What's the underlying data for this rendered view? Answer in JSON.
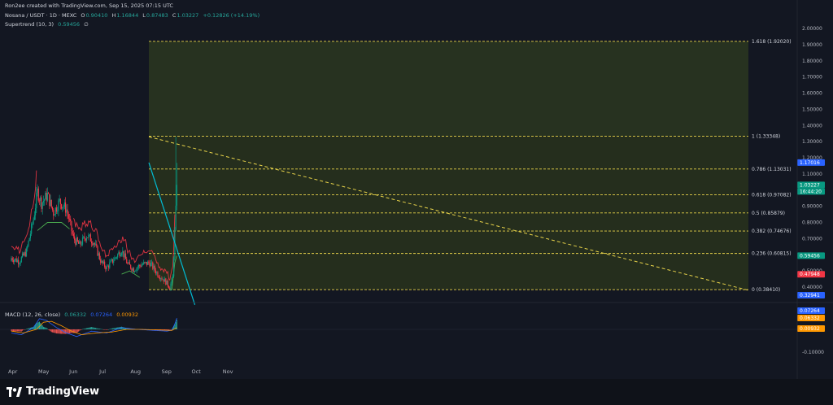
{
  "attribution": "Ron2ee created with TradingView.com, Sep 15, 2025 07:15 UTC",
  "legend": {
    "symbol": "Nosana / USDT · 1D · MEXC",
    "open_label": "O",
    "open": "0.90410",
    "high_label": "H",
    "high": "1.16844",
    "low_label": "L",
    "low": "0.87483",
    "close_label": "C",
    "close": "1.03227",
    "change": "+0.12826 (+14.19%)",
    "supertrend_label": "Supertrend (10, 3)",
    "supertrend_value": "0.59456",
    "supertrend_extra": "∅"
  },
  "macd_legend": {
    "label": "MACD (12, 26, close)",
    "v1": "0.06332",
    "v2": "0.07264",
    "v3": "0.00932"
  },
  "brand": "TradingView",
  "chart_data": [
    {
      "type": "candlestick",
      "title": "Nosana / USDT · 1D · MEXC",
      "x_tick_labels": [
        "Apr",
        "May",
        "Jun",
        "Jul",
        "Aug",
        "Sep",
        "Oct",
        "Nov"
      ],
      "y_tick_labels": [
        "2.00000",
        "1.90000",
        "1.80000",
        "1.70000",
        "1.60000",
        "1.50000",
        "1.40000",
        "1.30000",
        "1.20000",
        "1.10000",
        "1.00000",
        "0.90000",
        "0.80000",
        "0.70000",
        "0.60000",
        "0.50000",
        "0.40000"
      ],
      "ylim": [
        0.3,
        2.05
      ],
      "ohlc_approx": [
        {
          "date": "Apr 1",
          "close": 0.58
        },
        {
          "date": "Apr 15",
          "close": 0.62
        },
        {
          "date": "Apr 25",
          "close": 0.98
        },
        {
          "date": "May 1",
          "close": 0.9
        },
        {
          "date": "May 10",
          "close": 0.95
        },
        {
          "date": "May 20",
          "close": 0.8
        },
        {
          "date": "Jun 1",
          "close": 0.7
        },
        {
          "date": "Jun 10",
          "close": 0.66
        },
        {
          "date": "Jun 20",
          "close": 0.7
        },
        {
          "date": "Jul 1",
          "close": 0.54
        },
        {
          "date": "Jul 10",
          "close": 0.55
        },
        {
          "date": "Jul 20",
          "close": 0.63
        },
        {
          "date": "Aug 1",
          "close": 0.5
        },
        {
          "date": "Aug 15",
          "close": 0.52
        },
        {
          "date": "Aug 25",
          "close": 0.47
        },
        {
          "date": "Sep 8",
          "close": 0.4
        },
        {
          "date": "Sep 12",
          "close": 0.74
        },
        {
          "date": "Sep 15",
          "close": 1.03227
        }
      ],
      "fib_levels": [
        {
          "label": "1.618 (1.92020)",
          "value": 1.9202
        },
        {
          "label": "1 (1.33348)",
          "value": 1.33348
        },
        {
          "label": "0.786 (1.13031)",
          "value": 1.13031
        },
        {
          "label": "0.618 (0.97082)",
          "value": 0.97082
        },
        {
          "label": "0.5 (0.85879)",
          "value": 0.85879
        },
        {
          "label": "0.382 (0.74676)",
          "value": 0.74676
        },
        {
          "label": "0.236 (0.60815)",
          "value": 0.60815
        },
        {
          "label": "0 (0.38410)",
          "value": 0.3841
        }
      ],
      "price_labels": [
        {
          "text": "1.17016",
          "value": 1.17016,
          "color": "#2962ff"
        },
        {
          "text": "1.03227",
          "value": 1.03227,
          "color": "#089981"
        },
        {
          "text": "16:44:20",
          "value": 1.03227,
          "color": "#089981"
        },
        {
          "text": "0.59456",
          "value": 0.59456,
          "color": "#089981"
        },
        {
          "text": "0.47948",
          "value": 0.47948,
          "color": "#f23645"
        },
        {
          "text": "0.32941",
          "value": 0.32941,
          "color": "#2962ff"
        }
      ],
      "supertrend": {
        "value": 0.59456,
        "colors": {
          "up": "#4caf50",
          "down": "#f23645"
        }
      },
      "colors": {
        "up": "#089981",
        "down": "#f23645",
        "trendline": "#00bcd4",
        "fib": "#e8d34a",
        "background": "#131722"
      }
    },
    {
      "type": "histogram",
      "title": "MACD (12, 26, close)",
      "y_tick_labels": [
        "-0.10000"
      ],
      "price_labels": [
        {
          "text": "0.07264",
          "value": 0.07264,
          "color": "#2962ff"
        },
        {
          "text": "0.06332",
          "value": 0.06332,
          "color": "#ff9800"
        },
        {
          "text": "0.00932",
          "value": 0.00932,
          "color": "#ff9800"
        }
      ],
      "colors": {
        "macd": "#2962ff",
        "signal": "#ff9800",
        "hist_up": "#26a69a",
        "hist_down": "#ef5350"
      }
    }
  ]
}
